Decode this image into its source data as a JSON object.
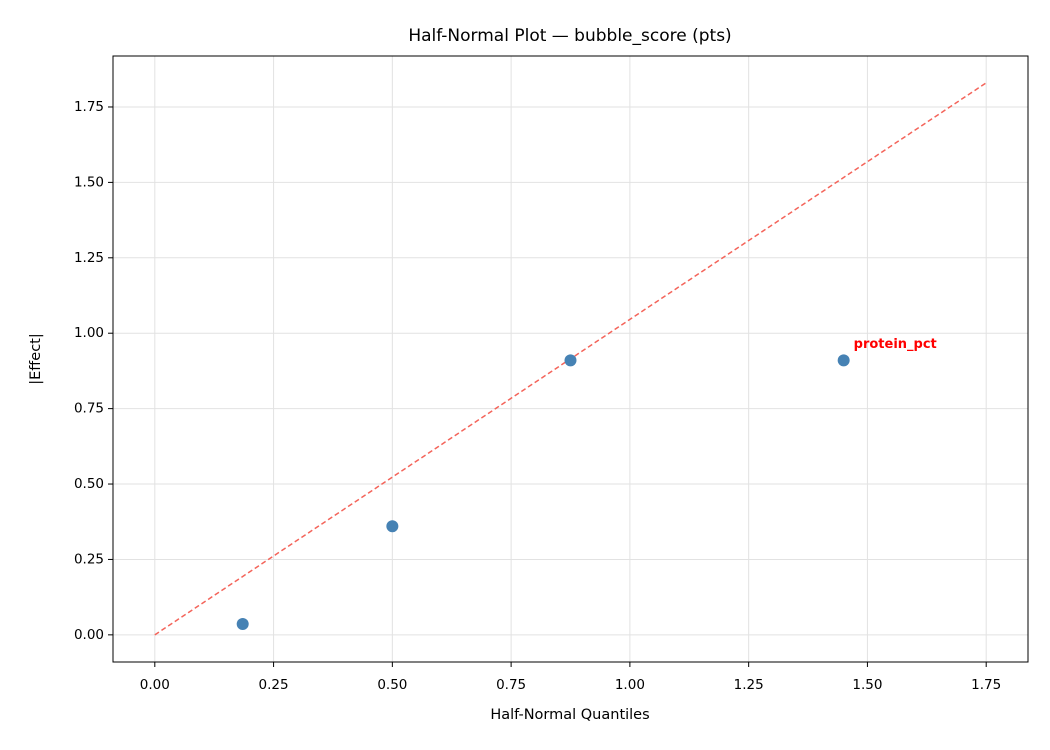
{
  "chart_data": {
    "type": "scatter",
    "title": "Half-Normal Plot — bubble_score (pts)",
    "x_label": "Half-Normal Quantiles",
    "y_label": "|Effect|",
    "x": [
      0.185,
      0.5,
      0.875,
      1.45
    ],
    "values": [
      0.036,
      0.36,
      0.91,
      0.91
    ],
    "color": "#4682b4",
    "reference_line": {
      "x": [
        0,
        1.75
      ],
      "y": [
        0,
        1.83
      ],
      "color": "#f4645a"
    },
    "annotations": [
      {
        "text": "protein_pct",
        "x": 1.45,
        "y": 0.91,
        "color": "#ff0000"
      }
    ],
    "xlim": [
      -0.088,
      1.838
    ],
    "ylim": [
      -0.09,
      1.919
    ],
    "xticks": [
      {
        "value": 0,
        "label": "0.00"
      },
      0.25,
      {
        "value": 0.5,
        "label": "0.50"
      },
      0.75,
      {
        "value": 1,
        "label": "1.00"
      },
      1.25,
      {
        "value": 1.5,
        "label": "1.50"
      },
      1.75
    ],
    "yticks": [
      {
        "value": 0,
        "label": "0.00"
      },
      0.25,
      {
        "value": 0.5,
        "label": "0.50"
      },
      0.75,
      {
        "value": 1,
        "label": "1.00"
      },
      1.25,
      {
        "value": 1.5,
        "label": "1.50"
      },
      1.75
    ],
    "grid": true
  }
}
